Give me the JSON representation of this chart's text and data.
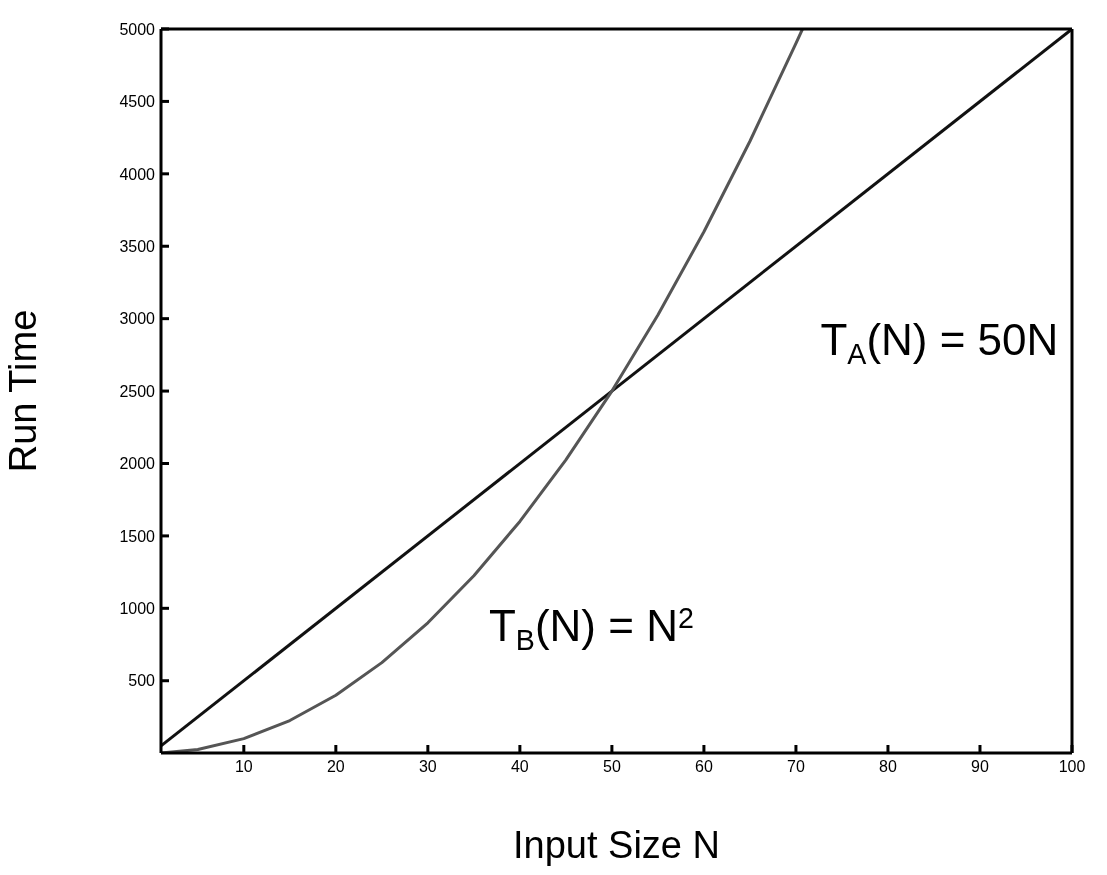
{
  "chart_data": {
    "type": "line",
    "xlabel": "Input Size N",
    "ylabel": "Run Time",
    "xlim": [
      1,
      100
    ],
    "xticks": [
      10,
      20,
      30,
      40,
      50,
      60,
      70,
      80,
      90,
      100
    ],
    "ylim": [
      1,
      5000
    ],
    "yticks": [
      500,
      1000,
      1500,
      2000,
      2500,
      3000,
      3500,
      4000,
      4500,
      5000
    ],
    "legend": false,
    "marker": "none",
    "line_style": "solid",
    "series": [
      {
        "name": "T$_{A}$(N) = 50N",
        "color": "#111111",
        "x": [
          1,
          100
        ],
        "values": [
          50,
          5000
        ]
      },
      {
        "name": "T$_{B}$(N) = N$^{2}$",
        "color": "#555555",
        "x": [
          1,
          5,
          10,
          15,
          20,
          25,
          30,
          35,
          40,
          45,
          50,
          55,
          60,
          65,
          70,
          70.7
        ],
        "values": [
          1,
          25,
          100,
          225,
          400,
          625,
          900,
          1225,
          1600,
          2025,
          2500,
          3025,
          3600,
          4225,
          4900,
          4998
        ]
      }
    ]
  }
}
